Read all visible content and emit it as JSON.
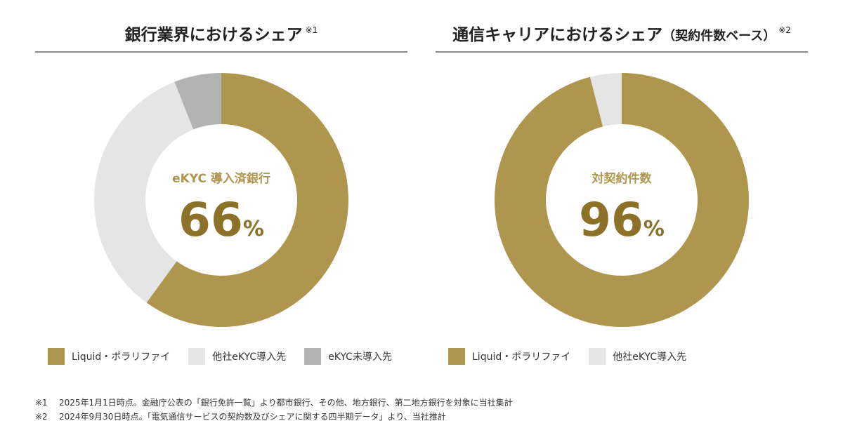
{
  "colors": {
    "gold": "#AE964F",
    "light_gray": "#E5E5E5",
    "mid_gray": "#B3B3B3",
    "text_gold": "#AE964F",
    "big_gold": "#8B7228"
  },
  "chart_data": [
    {
      "type": "pie",
      "title": "銀行業界におけるシェア",
      "title_note": "※1",
      "center_caption": "eKYC 導入済銀行",
      "center_value": "66",
      "center_unit": "%",
      "slices": [
        {
          "label": "Liquid・ポラリファイ",
          "value": 60,
          "color": "#AE964F"
        },
        {
          "label": "他社eKYC導入先",
          "value": 34,
          "color": "#E5E5E5"
        },
        {
          "label": "eKYC未導入先",
          "value": 6,
          "color": "#B3B3B3"
        }
      ]
    },
    {
      "type": "pie",
      "title": "通信キャリアにおけるシェア",
      "title_paren": "（契約件数ベース）",
      "title_note": "※2",
      "center_caption": "対契約件数",
      "center_value": "96",
      "center_unit": "%",
      "slices": [
        {
          "label": "Liquid・ポラリファイ",
          "value": 96,
          "color": "#AE964F"
        },
        {
          "label": "他社eKYC導入先",
          "value": 4,
          "color": "#E5E5E5"
        }
      ]
    }
  ],
  "notes": [
    {
      "mark": "※1",
      "text": "2025年1月1日時点。金融庁公表の「銀行免許一覧」より都市銀行、その他、地方銀行、第二地方銀行を対象に当社集計"
    },
    {
      "mark": "※2",
      "text": "2024年9月30日時点。「電気通信サービスの契約数及びシェアに関する四半期データ」より、当社推計"
    }
  ]
}
